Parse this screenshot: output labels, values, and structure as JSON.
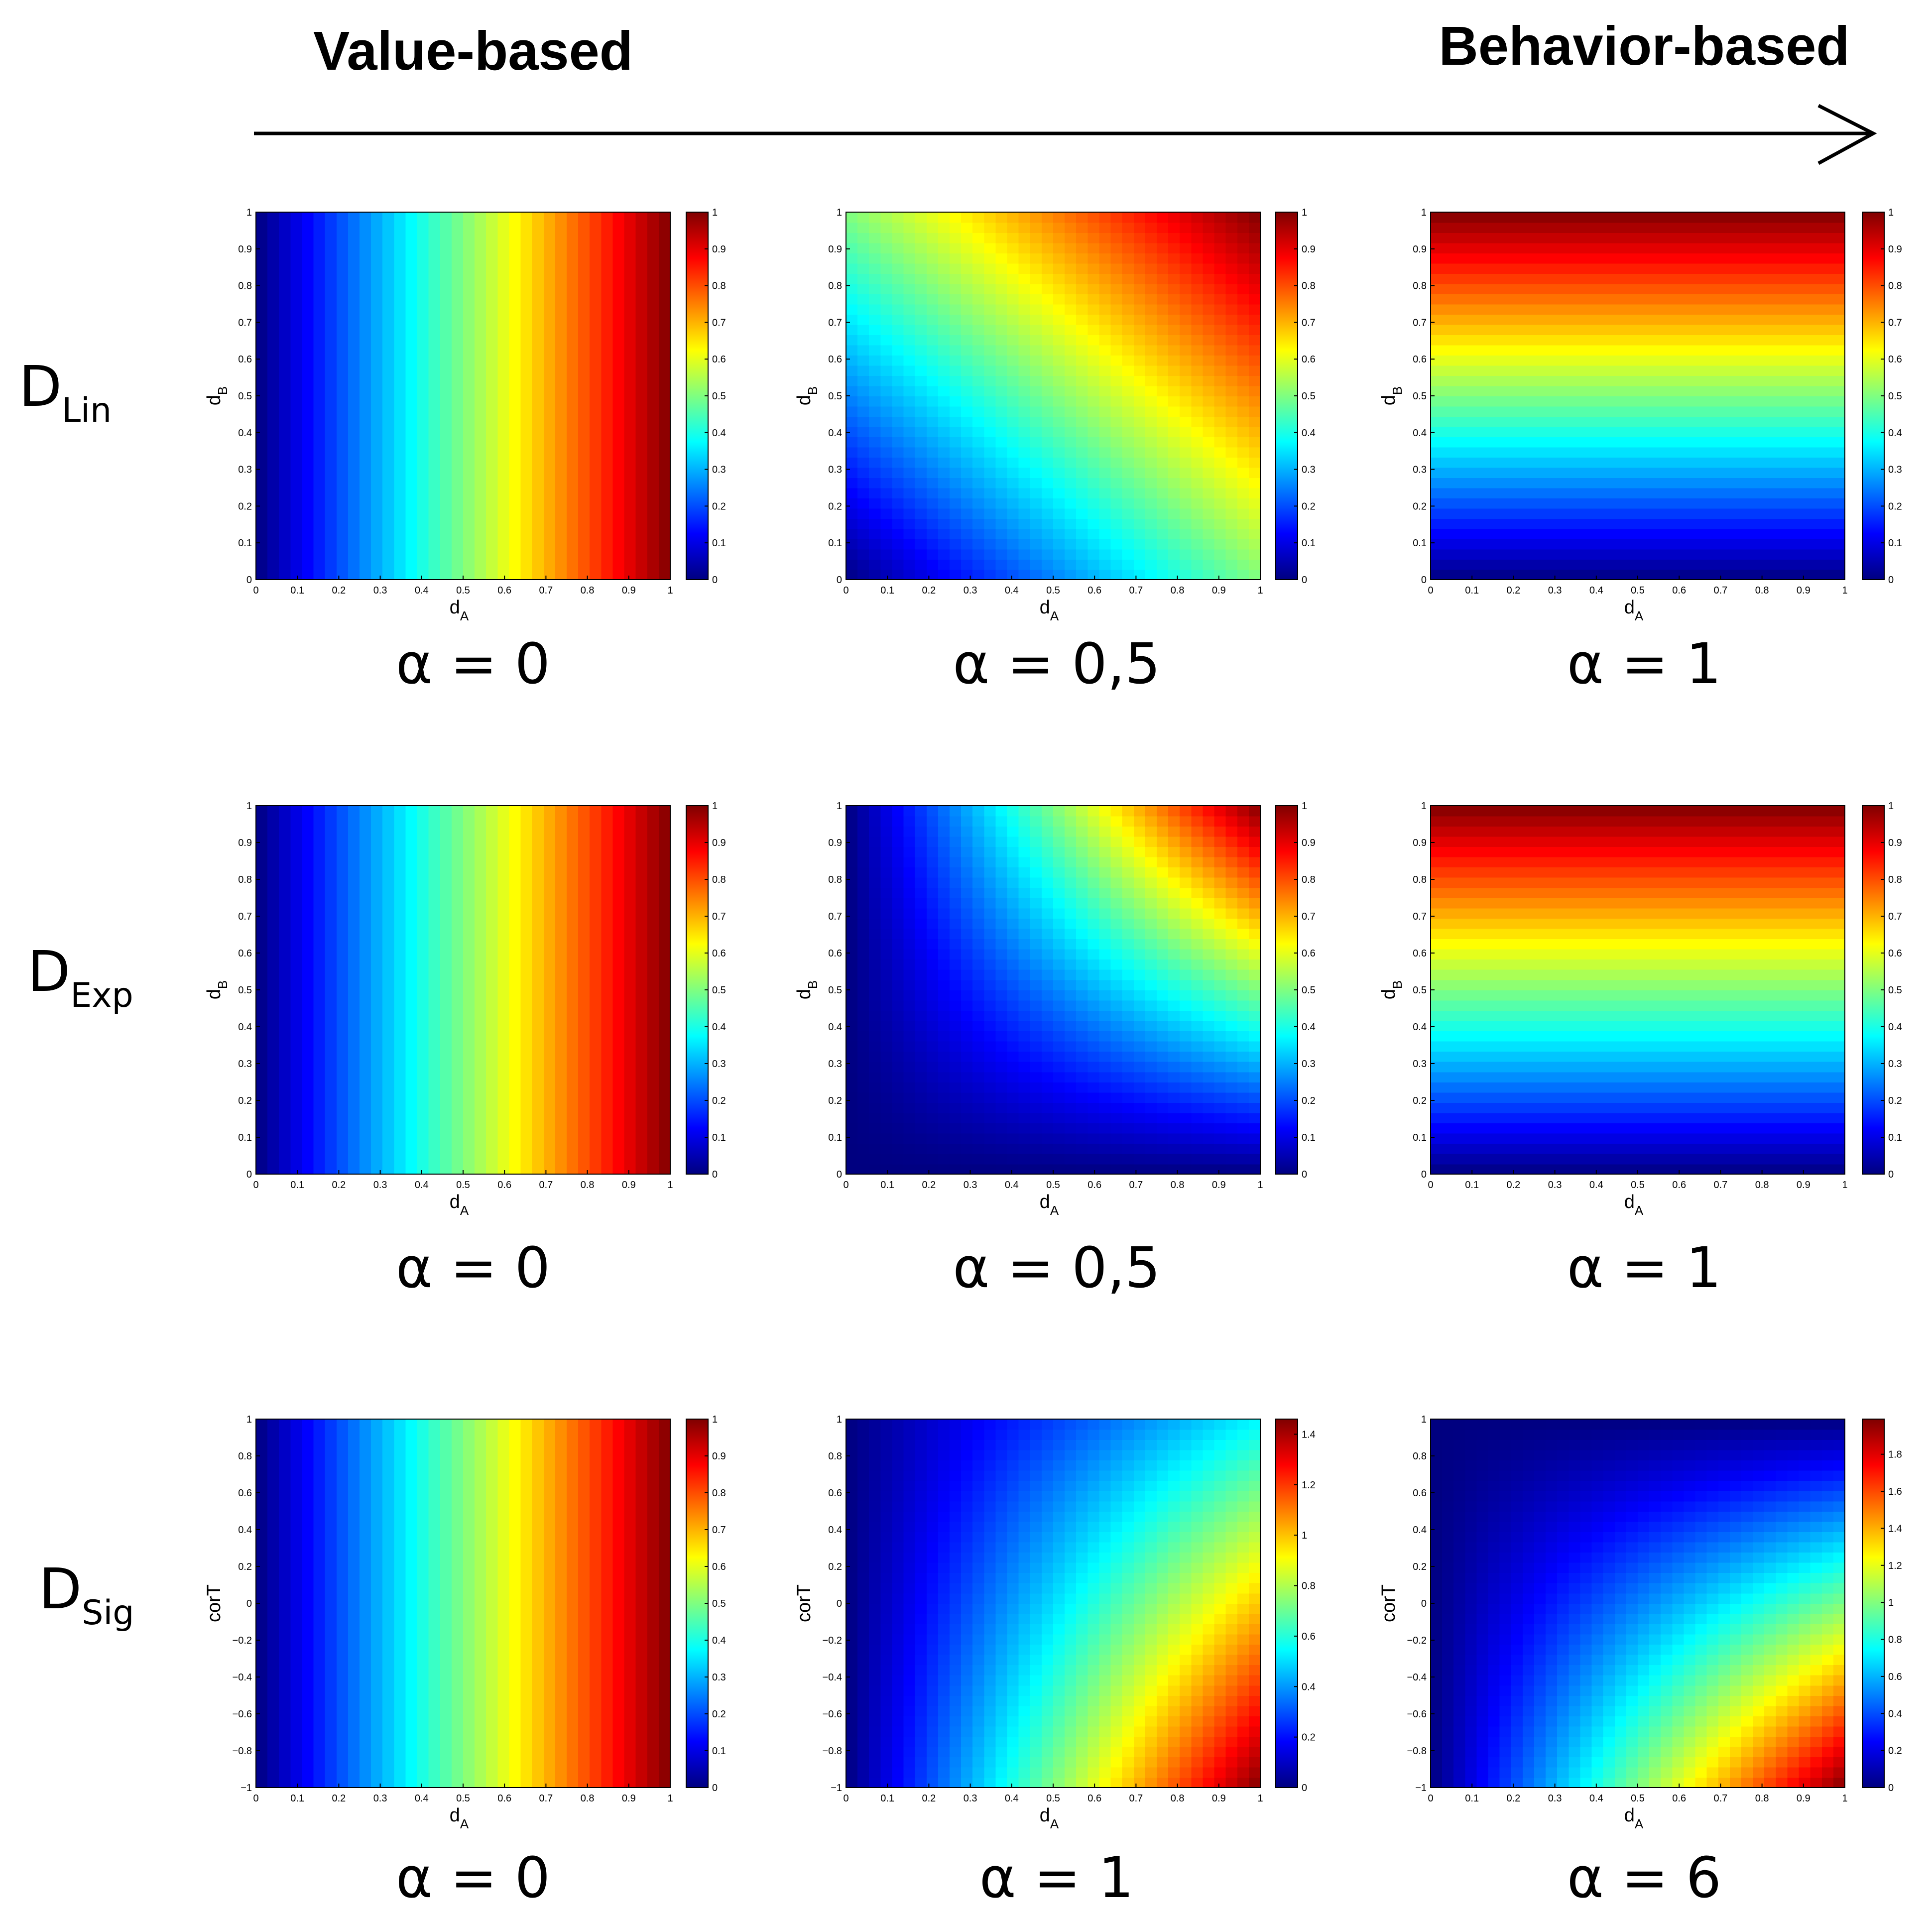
{
  "header": {
    "left_label": "Value-based",
    "right_label": "Behavior-based"
  },
  "rows": [
    {
      "label_main": "D",
      "label_sub": "Lin"
    },
    {
      "label_main": "D",
      "label_sub": "Exp"
    },
    {
      "label_main": "D",
      "label_sub": "Sig"
    }
  ],
  "chart_data": [
    {
      "type": "heatmap",
      "row": 0,
      "col": 0,
      "alpha_label": "α = 0",
      "xlabel_main": "d",
      "xlabel_sub": "A",
      "ylabel_main": "d",
      "ylabel_sub": "B",
      "x_range": [
        0,
        1
      ],
      "y_range": [
        0,
        1
      ],
      "x_ticks": [
        0,
        0.1,
        0.2,
        0.3,
        0.4,
        0.5,
        0.6,
        0.7,
        0.8,
        0.9,
        1
      ],
      "y_ticks": [
        0,
        0.1,
        0.2,
        0.3,
        0.4,
        0.5,
        0.6,
        0.7,
        0.8,
        0.9,
        1
      ],
      "colorbar_range": [
        0,
        1
      ],
      "colorbar_ticks": [
        0,
        0.1,
        0.2,
        0.3,
        0.4,
        0.5,
        0.6,
        0.7,
        0.8,
        0.9,
        1
      ],
      "corner_values": {
        "x0_y0": 0,
        "x1_y0": 1,
        "x0_y1": 0,
        "x1_y1": 1
      }
    },
    {
      "type": "heatmap",
      "row": 0,
      "col": 1,
      "alpha_label": "α = 0,5",
      "xlabel_main": "d",
      "xlabel_sub": "A",
      "ylabel_main": "d",
      "ylabel_sub": "B",
      "x_range": [
        0,
        1
      ],
      "y_range": [
        0,
        1
      ],
      "x_ticks": [
        0,
        0.1,
        0.2,
        0.3,
        0.4,
        0.5,
        0.6,
        0.7,
        0.8,
        0.9,
        1
      ],
      "y_ticks": [
        0,
        0.1,
        0.2,
        0.3,
        0.4,
        0.5,
        0.6,
        0.7,
        0.8,
        0.9,
        1
      ],
      "colorbar_range": [
        0,
        1
      ],
      "colorbar_ticks": [
        0,
        0.1,
        0.2,
        0.3,
        0.4,
        0.5,
        0.6,
        0.7,
        0.8,
        0.9,
        1
      ],
      "corner_values": {
        "x0_y0": 0,
        "x1_y0": 0.5,
        "x0_y1": 0.5,
        "x1_y1": 1
      }
    },
    {
      "type": "heatmap",
      "row": 0,
      "col": 2,
      "alpha_label": "α = 1",
      "xlabel_main": "d",
      "xlabel_sub": "A",
      "ylabel_main": "d",
      "ylabel_sub": "B",
      "x_range": [
        0,
        1
      ],
      "y_range": [
        0,
        1
      ],
      "x_ticks": [
        0,
        0.1,
        0.2,
        0.3,
        0.4,
        0.5,
        0.6,
        0.7,
        0.8,
        0.9,
        1
      ],
      "y_ticks": [
        0,
        0.1,
        0.2,
        0.3,
        0.4,
        0.5,
        0.6,
        0.7,
        0.8,
        0.9,
        1
      ],
      "colorbar_range": [
        0,
        1
      ],
      "colorbar_ticks": [
        0,
        0.1,
        0.2,
        0.3,
        0.4,
        0.5,
        0.6,
        0.7,
        0.8,
        0.9,
        1
      ],
      "corner_values": {
        "x0_y0": 0,
        "x1_y0": 0,
        "x0_y1": 1,
        "x1_y1": 1
      }
    },
    {
      "type": "heatmap",
      "row": 1,
      "col": 0,
      "alpha_label": "α = 0",
      "xlabel_main": "d",
      "xlabel_sub": "A",
      "ylabel_main": "d",
      "ylabel_sub": "B",
      "x_range": [
        0,
        1
      ],
      "y_range": [
        0,
        1
      ],
      "x_ticks": [
        0,
        0.1,
        0.2,
        0.3,
        0.4,
        0.5,
        0.6,
        0.7,
        0.8,
        0.9,
        1
      ],
      "y_ticks": [
        0,
        0.1,
        0.2,
        0.3,
        0.4,
        0.5,
        0.6,
        0.7,
        0.8,
        0.9,
        1
      ],
      "colorbar_range": [
        0,
        1
      ],
      "colorbar_ticks": [
        0,
        0.1,
        0.2,
        0.3,
        0.4,
        0.5,
        0.6,
        0.7,
        0.8,
        0.9,
        1
      ],
      "corner_values": {
        "x0_y0": 0,
        "x1_y0": 1,
        "x0_y1": 0,
        "x1_y1": 1
      }
    },
    {
      "type": "heatmap",
      "row": 1,
      "col": 1,
      "alpha_label": "α = 0,5",
      "xlabel_main": "d",
      "xlabel_sub": "A",
      "ylabel_main": "d",
      "ylabel_sub": "B",
      "x_range": [
        0,
        1
      ],
      "y_range": [
        0,
        1
      ],
      "x_ticks": [
        0,
        0.1,
        0.2,
        0.3,
        0.4,
        0.5,
        0.6,
        0.7,
        0.8,
        0.9,
        1
      ],
      "y_ticks": [
        0,
        0.1,
        0.2,
        0.3,
        0.4,
        0.5,
        0.6,
        0.7,
        0.8,
        0.9,
        1
      ],
      "colorbar_range": [
        0,
        1
      ],
      "colorbar_ticks": [
        0,
        0.1,
        0.2,
        0.3,
        0.4,
        0.5,
        0.6,
        0.7,
        0.8,
        0.9,
        1
      ],
      "corner_values": {
        "x0_y0": 0,
        "x1_y0": 0,
        "x0_y1": 0,
        "x1_y1": 1
      }
    },
    {
      "type": "heatmap",
      "row": 1,
      "col": 2,
      "alpha_label": "α = 1",
      "xlabel_main": "d",
      "xlabel_sub": "A",
      "ylabel_main": "d",
      "ylabel_sub": "B",
      "x_range": [
        0,
        1
      ],
      "y_range": [
        0,
        1
      ],
      "x_ticks": [
        0,
        0.1,
        0.2,
        0.3,
        0.4,
        0.5,
        0.6,
        0.7,
        0.8,
        0.9,
        1
      ],
      "y_ticks": [
        0,
        0.1,
        0.2,
        0.3,
        0.4,
        0.5,
        0.6,
        0.7,
        0.8,
        0.9,
        1
      ],
      "colorbar_range": [
        0,
        1
      ],
      "colorbar_ticks": [
        0,
        0.1,
        0.2,
        0.3,
        0.4,
        0.5,
        0.6,
        0.7,
        0.8,
        0.9,
        1
      ],
      "corner_values": {
        "x0_y0": 0,
        "x1_y0": 0,
        "x0_y1": 1,
        "x1_y1": 1
      }
    },
    {
      "type": "heatmap",
      "row": 2,
      "col": 0,
      "alpha_label": "α = 0",
      "xlabel_main": "d",
      "xlabel_sub": "A",
      "ylabel_main": "corT",
      "ylabel_sub": "",
      "x_range": [
        0,
        1
      ],
      "y_range": [
        -1,
        1
      ],
      "x_ticks": [
        0,
        0.1,
        0.2,
        0.3,
        0.4,
        0.5,
        0.6,
        0.7,
        0.8,
        0.9,
        1
      ],
      "y_ticks": [
        -1,
        -0.8,
        -0.6,
        -0.4,
        -0.2,
        0,
        0.2,
        0.4,
        0.6,
        0.8,
        1
      ],
      "colorbar_range": [
        0,
        1
      ],
      "colorbar_ticks": [
        0,
        0.1,
        0.2,
        0.3,
        0.4,
        0.5,
        0.6,
        0.7,
        0.8,
        0.9,
        1
      ],
      "corner_values": {
        "x0_y0": 0,
        "x1_y0": 1,
        "x0_y1": 0,
        "x1_y1": 1
      }
    },
    {
      "type": "heatmap",
      "row": 2,
      "col": 1,
      "alpha_label": "α = 1",
      "xlabel_main": "d",
      "xlabel_sub": "A",
      "ylabel_main": "corT",
      "ylabel_sub": "",
      "x_range": [
        0,
        1
      ],
      "y_range": [
        -1,
        1
      ],
      "x_ticks": [
        0,
        0.1,
        0.2,
        0.3,
        0.4,
        0.5,
        0.6,
        0.7,
        0.8,
        0.9,
        1
      ],
      "y_ticks": [
        -1,
        -0.8,
        -0.6,
        -0.4,
        -0.2,
        0,
        0.2,
        0.4,
        0.6,
        0.8,
        1
      ],
      "colorbar_range": [
        0,
        1.46
      ],
      "colorbar_ticks": [
        0,
        0.2,
        0.4,
        0.6,
        0.8,
        1,
        1.2,
        1.4
      ],
      "corner_values": {
        "x0_y0": 0,
        "x1_y0": 1.46,
        "x0_y1": 0,
        "x1_y1": 0.54
      }
    },
    {
      "type": "heatmap",
      "row": 2,
      "col": 2,
      "alpha_label": "α = 6",
      "xlabel_main": "d",
      "xlabel_sub": "A",
      "ylabel_main": "corT",
      "ylabel_sub": "",
      "x_range": [
        0,
        1
      ],
      "y_range": [
        -1,
        1
      ],
      "x_ticks": [
        0,
        0.1,
        0.2,
        0.3,
        0.4,
        0.5,
        0.6,
        0.7,
        0.8,
        0.9,
        1
      ],
      "y_ticks": [
        -1,
        -0.8,
        -0.6,
        -0.4,
        -0.2,
        0,
        0.2,
        0.4,
        0.6,
        0.8,
        1
      ],
      "colorbar_range": [
        0,
        1.99
      ],
      "colorbar_ticks": [
        0,
        0.2,
        0.4,
        0.6,
        0.8,
        1,
        1.2,
        1.4,
        1.6,
        1.8
      ],
      "corner_values": {
        "x0_y0": 0,
        "x1_y0": 1.99,
        "x0_y1": 0,
        "x1_y1": 0
      }
    }
  ]
}
